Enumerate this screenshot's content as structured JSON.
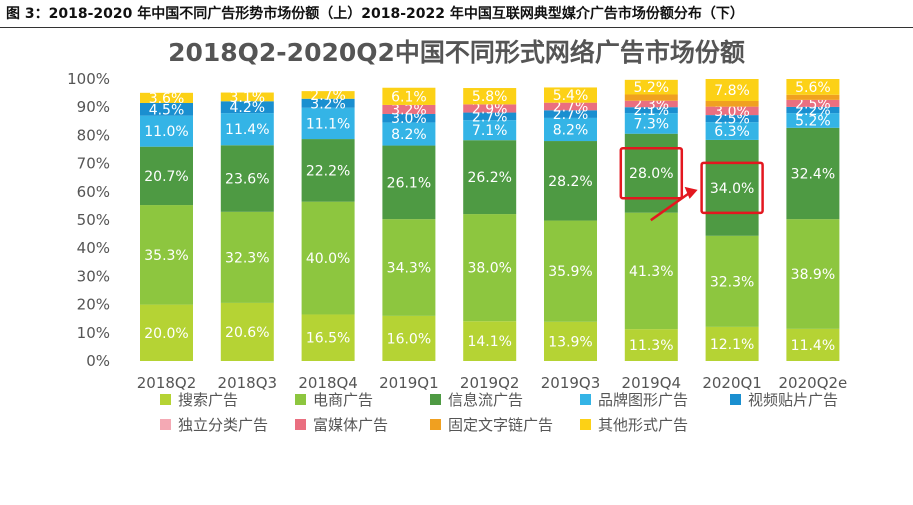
{
  "caption": "图 3：2018-2020 年中国不同广告形势市场份额（上）2018-2022 年中国互联网典型媒介广告市场份额分布（下）",
  "chart_data": {
    "type": "bar",
    "stacked": true,
    "title": "2018Q2-2020Q2中国不同形式网络广告市场份额",
    "categories": [
      "2018Q2",
      "2018Q3",
      "2018Q4",
      "2019Q1",
      "2019Q2",
      "2019Q3",
      "2019Q4",
      "2020Q1",
      "2020Q2e"
    ],
    "yticks": [
      "0%",
      "10%",
      "20%",
      "30%",
      "40%",
      "50%",
      "60%",
      "70%",
      "80%",
      "90%",
      "100%"
    ],
    "ylim": [
      0,
      100
    ],
    "series": [
      {
        "name": "搜索广告",
        "color": "#b5d334",
        "values": [
          20.0,
          20.6,
          16.5,
          16.0,
          14.1,
          13.9,
          11.3,
          12.1,
          11.4
        ],
        "labels": [
          "20.0%",
          "20.6%",
          "16.5%",
          "16.0%",
          "14.1%",
          "13.9%",
          "11.3%",
          "12.1%",
          "11.4%"
        ]
      },
      {
        "name": "电商广告",
        "color": "#8dc63f",
        "values": [
          35.3,
          32.3,
          40.0,
          34.3,
          38.0,
          35.9,
          41.3,
          32.3,
          38.9
        ],
        "labels": [
          "35.3%",
          "32.3%",
          "40.0%",
          "34.3%",
          "38.0%",
          "35.9%",
          "41.3%",
          "32.3%",
          "38.9%"
        ]
      },
      {
        "name": "信息流广告",
        "color": "#4e9a43",
        "values": [
          20.7,
          23.6,
          22.2,
          26.1,
          26.2,
          28.2,
          28.0,
          34.0,
          32.4
        ],
        "labels": [
          "20.7%",
          "23.6%",
          "22.2%",
          "26.1%",
          "26.2%",
          "28.2%",
          "28.0%",
          "34.0%",
          "32.4%"
        ]
      },
      {
        "name": "品牌图形广告",
        "color": "#34b4e6",
        "values": [
          11.0,
          11.4,
          11.1,
          8.2,
          7.1,
          8.2,
          7.3,
          6.3,
          5.2
        ],
        "labels": [
          "11.0%",
          "11.4%",
          "11.1%",
          "8.2%",
          "7.1%",
          "8.2%",
          "7.3%",
          "6.3%",
          "5.2%"
        ]
      },
      {
        "name": "视频贴片广告",
        "color": "#1a8fd0",
        "values": [
          4.5,
          4.2,
          3.2,
          3.0,
          2.7,
          2.7,
          2.1,
          2.5,
          2.2
        ],
        "labels": [
          "4.5%",
          "4.2%",
          "3.2%",
          "3.0%",
          "2.7%",
          "2.7%",
          "2.1%",
          "2.5%",
          "2.2%"
        ]
      },
      {
        "name": "独立分类广告",
        "color": "#f4a9b4",
        "values": [
          0,
          0,
          0,
          0,
          0,
          0,
          0,
          0,
          0
        ],
        "labels": [
          "",
          "",
          "",
          "",
          "",
          "",
          "",
          "",
          ""
        ]
      },
      {
        "name": "富媒体广告",
        "color": "#ea6f80",
        "values": [
          0,
          0,
          0,
          3.2,
          2.9,
          2.7,
          2.3,
          3.0,
          2.5
        ],
        "labels": [
          "",
          "",
          "",
          "3.2%",
          "2.9%",
          "2.7%",
          "2.3%",
          "3.0%",
          "2.5%"
        ]
      },
      {
        "name": "固定文字链广告",
        "color": "#f0a020",
        "values": [
          0,
          0,
          0,
          0,
          0,
          0,
          2.2,
          2.0,
          1.8
        ],
        "labels": [
          "",
          "",
          "",
          "",
          "",
          "",
          "",
          "",
          ""
        ]
      },
      {
        "name": "其他形式广告",
        "color": "#fcd116",
        "values": [
          3.6,
          3.1,
          2.7,
          6.1,
          5.8,
          5.4,
          5.2,
          7.8,
          5.6
        ],
        "labels": [
          "3.6%",
          "3.1%",
          "2.7%",
          "6.1%",
          "5.8%",
          "5.4%",
          "5.2%",
          "7.8%",
          "5.6%"
        ]
      }
    ],
    "highlights": [
      {
        "category": "2019Q4",
        "series": "信息流广告"
      },
      {
        "category": "2020Q1",
        "series": "信息流广告"
      }
    ],
    "legend_position": "bottom",
    "grid": false
  }
}
